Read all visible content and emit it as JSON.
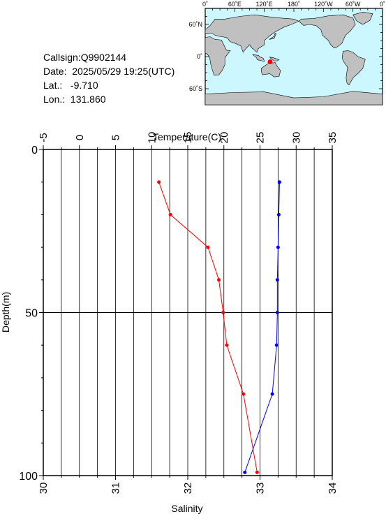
{
  "info": {
    "callsign": "Callsign:Q9902144",
    "date": "Date:  2025/05/29 19:25(UTC)",
    "lat": "Lat.:   -9.710",
    "lon": "Lon.:  131.860"
  },
  "map": {
    "lon_ticks": [
      "0˚",
      "60˚E",
      "120˚E",
      "180˚",
      "120˚W",
      "60˚W",
      "0˚"
    ],
    "lat_ticks": [
      "60˚N",
      "0˚",
      "60˚S"
    ],
    "ocean_color": "#ccf7ff",
    "land_color": "#c0c0c0",
    "marker_color": "#ff0000",
    "marker": {
      "lat": -9.71,
      "lon": 131.86
    }
  },
  "chart_data": {
    "type": "line",
    "xlabel_top": "Temperature(C)",
    "xlabel_bottom": "Salinity",
    "ylabel": "Depth(m)",
    "temp_range": [
      -5,
      35
    ],
    "sal_range": [
      30,
      34
    ],
    "depth_range": [
      0,
      100
    ],
    "temp_ticks": [
      "-5",
      "0",
      "5",
      "10",
      "15",
      "20",
      "25",
      "30",
      "35"
    ],
    "sal_ticks": [
      "30",
      "31",
      "32",
      "33",
      "34"
    ],
    "depth_ticks": [
      "0",
      "50",
      "100"
    ],
    "series": [
      {
        "color": "#ff0000",
        "axis": "temperature",
        "depth": [
          10,
          20,
          30,
          40,
          50,
          60,
          75,
          99
        ],
        "values": [
          11.0,
          12.6,
          17.8,
          19.3,
          19.9,
          20.4,
          22.7,
          24.6
        ]
      },
      {
        "color": "#0000ff",
        "axis": "salinity",
        "depth": [
          10,
          20,
          30,
          40,
          50,
          60,
          75,
          99
        ],
        "values": [
          33.27,
          33.26,
          33.25,
          33.24,
          33.24,
          33.23,
          33.17,
          32.79
        ]
      }
    ]
  }
}
